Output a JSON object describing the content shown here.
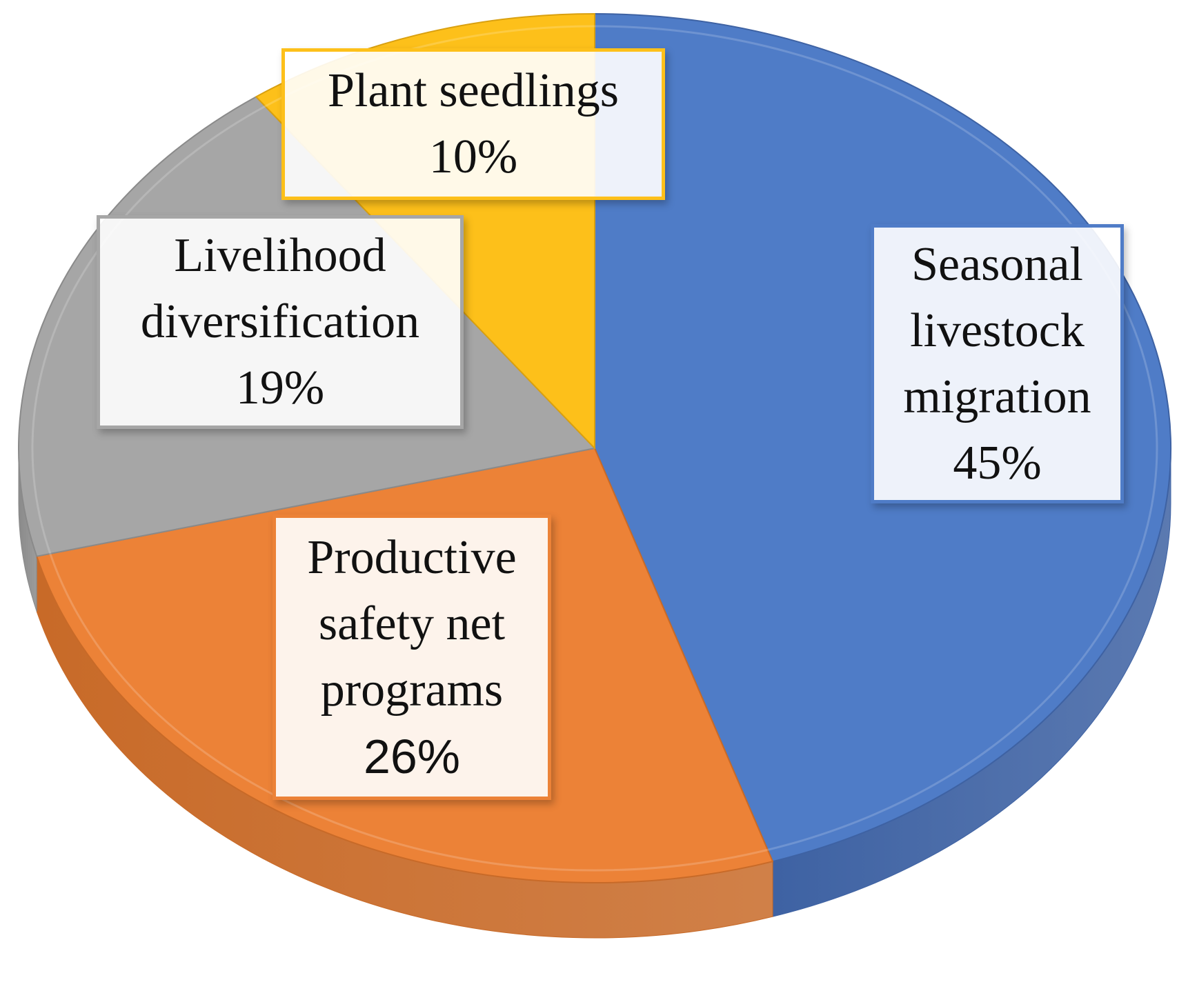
{
  "chart_data": {
    "type": "pie",
    "style": "3d",
    "start_angle_deg": 0,
    "direction": "clockwise",
    "slices": [
      {
        "label_lines": [
          "Seasonal",
          "livestock",
          "migration"
        ],
        "percent_label": "45%",
        "value": 45,
        "color": "#4F7CC7",
        "side_color": "#3E62A3"
      },
      {
        "label_lines": [
          "Productive",
          "safety net",
          "programs"
        ],
        "percent_label": "26%",
        "value": 26,
        "color": "#EC8237",
        "side_color": "#C86A28"
      },
      {
        "label_lines": [
          "Livelihood",
          "diversification"
        ],
        "percent_label": "19%",
        "value": 19,
        "color": "#A6A6A6",
        "side_color": "#8A8A8A"
      },
      {
        "label_lines": [
          "Plant seedlings"
        ],
        "percent_label": "10%",
        "value": 10,
        "color": "#FDC01A",
        "side_color": "#D9A010"
      }
    ]
  }
}
